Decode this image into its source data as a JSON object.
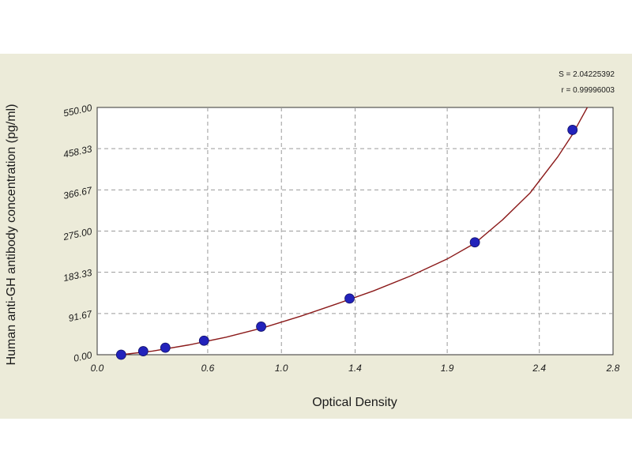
{
  "chart_data": {
    "type": "scatter",
    "title": "",
    "xlabel": "Optical Density",
    "ylabel": "Human anti-GH antibody concentration (pg/ml)",
    "xlim": [
      0.0,
      2.8
    ],
    "ylim": [
      0.0,
      550.0
    ],
    "x_ticks": [
      0.0,
      0.6,
      1.0,
      1.4,
      1.9,
      2.4,
      2.8
    ],
    "x_tick_labels": [
      "0.0",
      "0.6",
      "1.0",
      "1.4",
      "1.9",
      "2.4",
      "2.8"
    ],
    "y_ticks": [
      0.0,
      91.67,
      183.33,
      275.0,
      366.67,
      458.33,
      550.0
    ],
    "y_tick_labels": [
      "0.00",
      "91.67",
      "183.33",
      "275.00",
      "366.67",
      "458.33",
      "550.00"
    ],
    "grid": true,
    "stats": [
      "S = 2.04225392",
      "r = 0.99996003"
    ],
    "point_color": "#2222bb",
    "curve_color": "#8b1a1a",
    "points": [
      {
        "x": 0.13,
        "y": 0.0
      },
      {
        "x": 0.25,
        "y": 7.8
      },
      {
        "x": 0.37,
        "y": 15.6
      },
      {
        "x": 0.58,
        "y": 31.25
      },
      {
        "x": 0.89,
        "y": 62.5
      },
      {
        "x": 1.37,
        "y": 125.0
      },
      {
        "x": 2.05,
        "y": 250.0
      },
      {
        "x": 2.58,
        "y": 500.0
      }
    ],
    "fit_curve": [
      {
        "x": 0.13,
        "y": 0.0
      },
      {
        "x": 0.3,
        "y": 8.0
      },
      {
        "x": 0.5,
        "y": 22.0
      },
      {
        "x": 0.7,
        "y": 39.0
      },
      {
        "x": 0.9,
        "y": 60.0
      },
      {
        "x": 1.1,
        "y": 85.0
      },
      {
        "x": 1.3,
        "y": 113.0
      },
      {
        "x": 1.5,
        "y": 142.0
      },
      {
        "x": 1.7,
        "y": 175.0
      },
      {
        "x": 1.9,
        "y": 213.0
      },
      {
        "x": 2.05,
        "y": 248.0
      },
      {
        "x": 2.2,
        "y": 300.0
      },
      {
        "x": 2.35,
        "y": 360.0
      },
      {
        "x": 2.5,
        "y": 440.0
      },
      {
        "x": 2.58,
        "y": 490.0
      },
      {
        "x": 2.62,
        "y": 520.0
      },
      {
        "x": 2.66,
        "y": 550.0
      }
    ]
  }
}
